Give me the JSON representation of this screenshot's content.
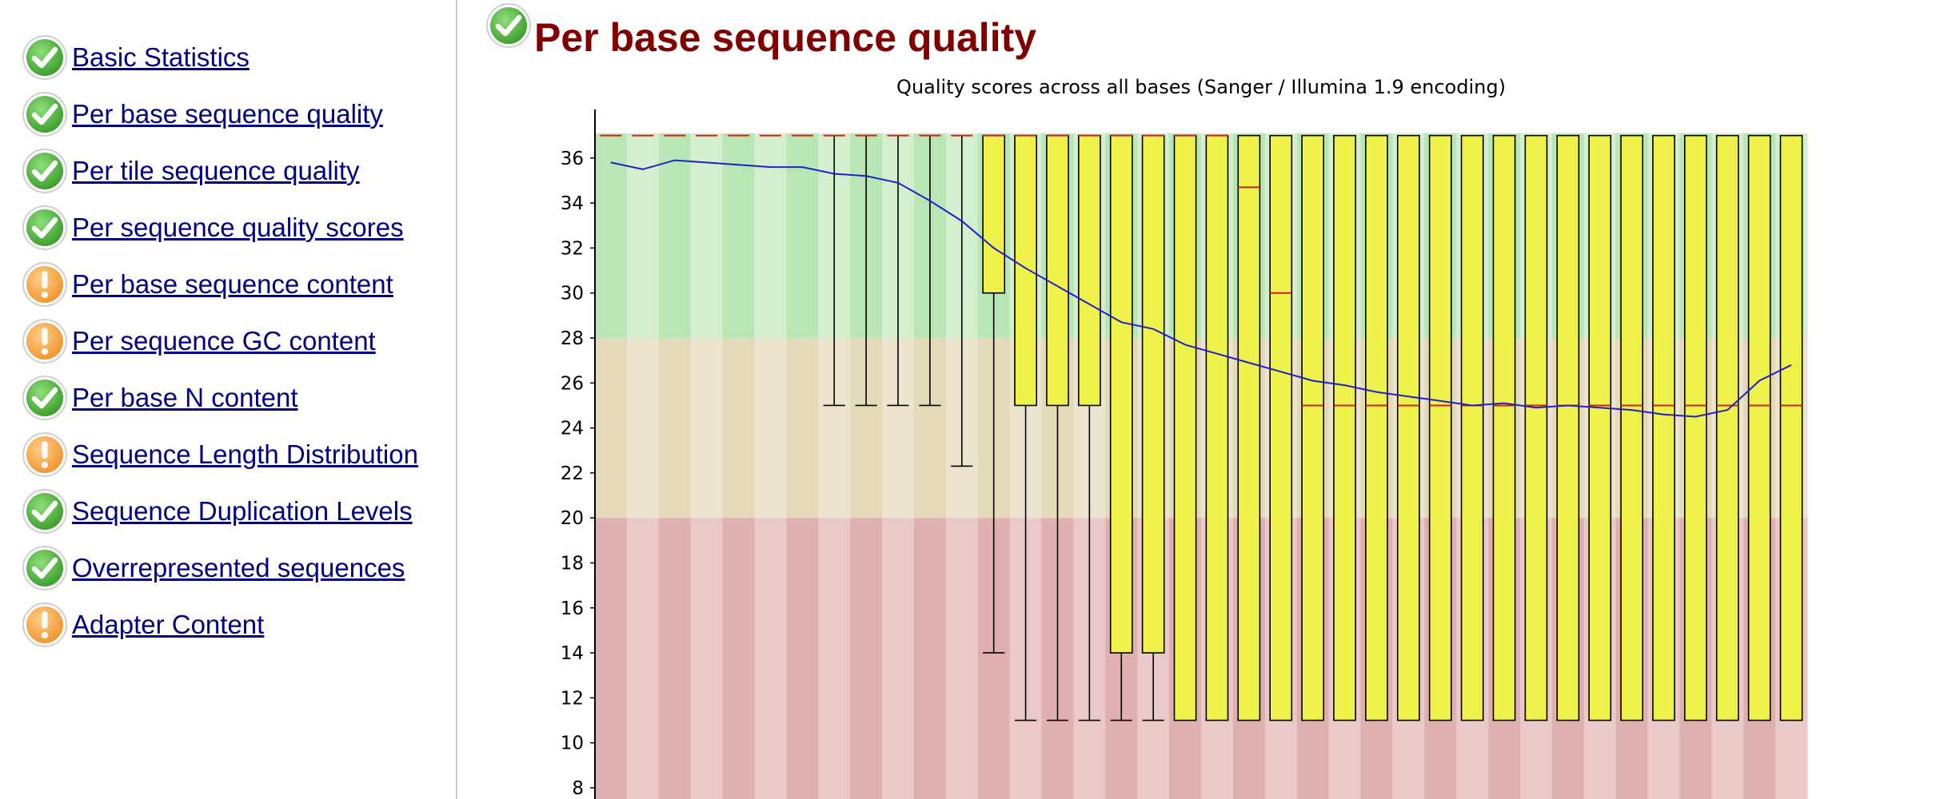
{
  "sidebar": {
    "items": [
      {
        "label": "Basic Statistics",
        "status": "pass"
      },
      {
        "label": "Per base sequence quality",
        "status": "pass"
      },
      {
        "label": "Per tile sequence quality",
        "status": "pass"
      },
      {
        "label": "Per sequence quality scores",
        "status": "pass"
      },
      {
        "label": "Per base sequence content",
        "status": "warn"
      },
      {
        "label": "Per sequence GC content",
        "status": "warn"
      },
      {
        "label": "Per base N content",
        "status": "pass"
      },
      {
        "label": "Sequence Length Distribution",
        "status": "warn"
      },
      {
        "label": "Sequence Duplication Levels",
        "status": "pass"
      },
      {
        "label": "Overrepresented sequences",
        "status": "pass"
      },
      {
        "label": "Adapter Content",
        "status": "warn"
      }
    ]
  },
  "module": {
    "title": "Per base sequence quality",
    "status": "pass"
  },
  "icons": {
    "pass": "check-icon",
    "warn": "exclamation-icon"
  },
  "colors": {
    "pass_green": "#3a9a2a",
    "warn_orange": "#f0922a",
    "title_red": "#800000",
    "link_blue": "#000080",
    "box_yellow": "#eef24a",
    "median_red": "#d22020",
    "mean_blue": "#2020c8",
    "zone_good": "#b8e6b4",
    "zone_ok": "#e4dab8",
    "zone_poor": "#e0b0b0"
  },
  "chart_data": {
    "type": "boxplot",
    "title": "Quality scores across all bases (Sanger / Illumina 1.9 encoding)",
    "yticks": [
      8,
      10,
      12,
      14,
      16,
      18,
      20,
      22,
      24,
      26,
      28,
      30,
      32,
      34,
      36
    ],
    "ylim": [
      6,
      37.1
    ],
    "zones": [
      {
        "from": 28,
        "to": 37.1,
        "quality": "good"
      },
      {
        "from": 20,
        "to": 28,
        "quality": "reasonable"
      },
      {
        "from": 6,
        "to": 20,
        "quality": "poor"
      }
    ],
    "positions": [
      {
        "median": 37,
        "q1": 37,
        "q3": 37,
        "low": 37,
        "high": 37,
        "mean": 35.8
      },
      {
        "median": 37,
        "q1": 37,
        "q3": 37,
        "low": 37,
        "high": 37,
        "mean": 35.5
      },
      {
        "median": 37,
        "q1": 37,
        "q3": 37,
        "low": 37,
        "high": 37,
        "mean": 35.9
      },
      {
        "median": 37,
        "q1": 37,
        "q3": 37,
        "low": 37,
        "high": 37,
        "mean": 35.8
      },
      {
        "median": 37,
        "q1": 37,
        "q3": 37,
        "low": 37,
        "high": 37,
        "mean": 35.7
      },
      {
        "median": 37,
        "q1": 37,
        "q3": 37,
        "low": 37,
        "high": 37,
        "mean": 35.6
      },
      {
        "median": 37,
        "q1": 37,
        "q3": 37,
        "low": 37,
        "high": 37,
        "mean": 35.6
      },
      {
        "median": 37,
        "q1": 37,
        "q3": 37,
        "low": 25,
        "high": 37,
        "mean": 35.3
      },
      {
        "median": 37,
        "q1": 37,
        "q3": 37,
        "low": 25,
        "high": 37,
        "mean": 35.2
      },
      {
        "median": 37,
        "q1": 37,
        "q3": 37,
        "low": 25,
        "high": 37,
        "mean": 34.9
      },
      {
        "median": 37,
        "q1": 37,
        "q3": 37,
        "low": 25,
        "high": 37,
        "mean": 34.1
      },
      {
        "median": 37,
        "q1": 37,
        "q3": 37,
        "low": 22.3,
        "high": 37,
        "mean": 33.2
      },
      {
        "median": 37,
        "q1": 30,
        "q3": 37,
        "low": 14,
        "high": 37,
        "mean": 32.0
      },
      {
        "median": 37,
        "q1": 25,
        "q3": 37,
        "low": 11,
        "high": 37,
        "mean": 31.1
      },
      {
        "median": 37,
        "q1": 25,
        "q3": 37,
        "low": 11,
        "high": 37,
        "mean": 30.3
      },
      {
        "median": 37,
        "q1": 25,
        "q3": 37,
        "low": 11,
        "high": 37,
        "mean": 29.5
      },
      {
        "median": 37,
        "q1": 14,
        "q3": 37,
        "low": 11,
        "high": 37,
        "mean": 28.7
      },
      {
        "median": 37,
        "q1": 14,
        "q3": 37,
        "low": 11,
        "high": 37,
        "mean": 28.4
      },
      {
        "median": 37,
        "q1": 11,
        "q3": 37,
        "low": 11,
        "high": 37,
        "mean": 27.7
      },
      {
        "median": 37,
        "q1": 11,
        "q3": 37,
        "low": 11,
        "high": 37,
        "mean": 27.3
      },
      {
        "median": 34.7,
        "q1": 11,
        "q3": 37,
        "low": 11,
        "high": 37,
        "mean": 26.9
      },
      {
        "median": 30,
        "q1": 11,
        "q3": 37,
        "low": 11,
        "high": 37,
        "mean": 26.5
      },
      {
        "median": 25,
        "q1": 11,
        "q3": 37,
        "low": 11,
        "high": 37,
        "mean": 26.1
      },
      {
        "median": 25,
        "q1": 11,
        "q3": 37,
        "low": 11,
        "high": 37,
        "mean": 25.9
      },
      {
        "median": 25,
        "q1": 11,
        "q3": 37,
        "low": 11,
        "high": 37,
        "mean": 25.6
      },
      {
        "median": 25,
        "q1": 11,
        "q3": 37,
        "low": 11,
        "high": 37,
        "mean": 25.4
      },
      {
        "median": 25,
        "q1": 11,
        "q3": 37,
        "low": 11,
        "high": 37,
        "mean": 25.2
      },
      {
        "median": 25,
        "q1": 11,
        "q3": 37,
        "low": 11,
        "high": 37,
        "mean": 25.0
      },
      {
        "median": 25,
        "q1": 11,
        "q3": 37,
        "low": 11,
        "high": 37,
        "mean": 25.1
      },
      {
        "median": 25,
        "q1": 11,
        "q3": 37,
        "low": 11,
        "high": 37,
        "mean": 24.9
      },
      {
        "median": 25,
        "q1": 11,
        "q3": 37,
        "low": 11,
        "high": 37,
        "mean": 25.0
      },
      {
        "median": 25,
        "q1": 11,
        "q3": 37,
        "low": 11,
        "high": 37,
        "mean": 24.9
      },
      {
        "median": 25,
        "q1": 11,
        "q3": 37,
        "low": 11,
        "high": 37,
        "mean": 24.8
      },
      {
        "median": 25,
        "q1": 11,
        "q3": 37,
        "low": 11,
        "high": 37,
        "mean": 24.6
      },
      {
        "median": 25,
        "q1": 11,
        "q3": 37,
        "low": 11,
        "high": 37,
        "mean": 24.5
      },
      {
        "median": 25,
        "q1": 11,
        "q3": 37,
        "low": 11,
        "high": 37,
        "mean": 24.8
      },
      {
        "median": 25,
        "q1": 11,
        "q3": 37,
        "low": 11,
        "high": 37,
        "mean": 26.1
      },
      {
        "median": 25,
        "q1": 11,
        "q3": 37,
        "low": 11,
        "high": 37,
        "mean": 26.8
      }
    ]
  }
}
